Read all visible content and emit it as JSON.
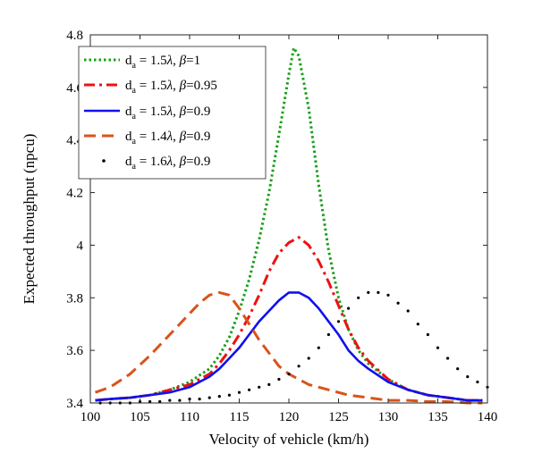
{
  "chart_data": {
    "type": "line",
    "title": "",
    "xlabel": "Velocity of vehicle (km/h)",
    "ylabel": "Expected throughput (npcu)",
    "xlim": [
      100,
      140
    ],
    "ylim": [
      3.4,
      4.8
    ],
    "xticks": [
      100,
      105,
      110,
      115,
      120,
      125,
      130,
      135,
      140
    ],
    "yticks": [
      3.4,
      3.6,
      3.8,
      4.0,
      4.2,
      4.4,
      4.6,
      4.8
    ],
    "ytick_labels": [
      "3.4",
      "3.6",
      "3.8",
      "4",
      "4.2",
      "4.4",
      "4.6",
      "4.8"
    ],
    "grid": false,
    "legend_position": "top-left",
    "series": [
      {
        "name": "d_a = 1.5λ, β=1",
        "legend": {
          "pre": "d",
          "sub": "a",
          "mid": " = 1.5",
          "lambda": "λ",
          "sep": ", ",
          "beta": "β",
          "post": "=1"
        },
        "color": "#1a9e1a",
        "style": "dotted",
        "x": [
          100.5,
          102,
          104,
          106,
          108,
          110,
          112,
          113,
          114,
          115,
          116,
          117,
          118,
          119,
          120,
          120.5,
          121,
          122,
          123,
          124,
          125,
          126,
          127,
          128,
          130,
          132,
          134,
          136,
          138,
          139.5
        ],
        "y": [
          3.41,
          3.415,
          3.42,
          3.43,
          3.45,
          3.48,
          3.53,
          3.58,
          3.65,
          3.75,
          3.87,
          4.02,
          4.2,
          4.42,
          4.65,
          4.75,
          4.72,
          4.52,
          4.23,
          3.98,
          3.8,
          3.68,
          3.6,
          3.55,
          3.49,
          3.45,
          3.43,
          3.42,
          3.41,
          3.41
        ]
      },
      {
        "name": "d_a = 1.5λ, β=0.95",
        "legend": {
          "pre": "d",
          "sub": "a",
          "mid": " = 1.5",
          "lambda": "λ",
          "sep": ", ",
          "beta": "β",
          "post": "=0.95"
        },
        "color": "#ee1111",
        "style": "dashdot",
        "x": [
          100.5,
          102,
          104,
          106,
          108,
          110,
          112,
          113,
          114,
          115,
          116,
          117,
          118,
          119,
          120,
          121,
          122,
          123,
          124,
          125,
          126,
          127,
          128,
          130,
          132,
          134,
          136,
          138,
          139.5
        ],
        "y": [
          3.41,
          3.415,
          3.42,
          3.43,
          3.45,
          3.47,
          3.51,
          3.55,
          3.6,
          3.66,
          3.73,
          3.81,
          3.9,
          3.97,
          4.01,
          4.03,
          4.0,
          3.94,
          3.86,
          3.77,
          3.68,
          3.61,
          3.56,
          3.49,
          3.45,
          3.43,
          3.42,
          3.41,
          3.41
        ]
      },
      {
        "name": "d_a = 1.5λ, β=0.9",
        "legend": {
          "pre": "d",
          "sub": "a",
          "mid": " = 1.5",
          "lambda": "λ",
          "sep": ", ",
          "beta": "β",
          "post": "=0.9"
        },
        "color": "#1111ee",
        "style": "solid",
        "x": [
          100.5,
          102,
          104,
          106,
          108,
          110,
          112,
          113,
          114,
          115,
          116,
          117,
          118,
          119,
          120,
          121,
          122,
          123,
          124,
          125,
          126,
          127,
          128,
          130,
          132,
          134,
          136,
          138,
          139.5
        ],
        "y": [
          3.41,
          3.415,
          3.42,
          3.43,
          3.44,
          3.46,
          3.5,
          3.53,
          3.57,
          3.61,
          3.66,
          3.71,
          3.75,
          3.79,
          3.82,
          3.82,
          3.8,
          3.76,
          3.71,
          3.66,
          3.6,
          3.56,
          3.53,
          3.48,
          3.45,
          3.43,
          3.42,
          3.41,
          3.41
        ]
      },
      {
        "name": "d_a = 1.4λ, β=0.9",
        "legend": {
          "pre": "d",
          "sub": "a",
          "mid": " = 1.4",
          "lambda": "λ",
          "sep": ", ",
          "beta": "β",
          "post": "=0.9"
        },
        "color": "#d95319",
        "style": "dashed",
        "x": [
          100.5,
          102,
          104,
          106,
          108,
          110,
          111,
          112,
          113,
          114,
          115,
          116,
          117,
          118,
          119,
          120,
          121,
          122,
          124,
          126,
          128,
          130,
          132,
          134,
          136,
          138,
          139.5
        ],
        "y": [
          3.44,
          3.46,
          3.51,
          3.58,
          3.66,
          3.74,
          3.78,
          3.81,
          3.82,
          3.81,
          3.76,
          3.7,
          3.64,
          3.59,
          3.54,
          3.51,
          3.49,
          3.47,
          3.45,
          3.43,
          3.42,
          3.41,
          3.41,
          3.405,
          3.405,
          3.4,
          3.4
        ]
      },
      {
        "name": "d_a = 1.6λ, β=0.9",
        "legend": {
          "pre": "d",
          "sub": "a",
          "mid": " = 1.6",
          "lambda": "λ",
          "sep": ", ",
          "beta": "β",
          "post": "=0.9"
        },
        "color": "#000000",
        "style": "dots",
        "x": [
          101,
          102,
          103,
          104,
          105,
          106,
          107,
          108,
          109,
          110,
          111,
          112,
          113,
          114,
          115,
          116,
          117,
          118,
          119,
          120,
          121,
          122,
          123,
          124,
          125,
          126,
          127,
          128,
          129,
          130,
          131,
          132,
          133,
          134,
          135,
          136,
          137,
          138,
          139,
          140
        ],
        "y": [
          3.4,
          3.4,
          3.4,
          3.4,
          3.405,
          3.405,
          3.405,
          3.41,
          3.41,
          3.415,
          3.415,
          3.42,
          3.425,
          3.43,
          3.44,
          3.45,
          3.46,
          3.47,
          3.49,
          3.51,
          3.54,
          3.57,
          3.61,
          3.66,
          3.71,
          3.76,
          3.8,
          3.82,
          3.82,
          3.81,
          3.78,
          3.75,
          3.7,
          3.66,
          3.61,
          3.57,
          3.53,
          3.5,
          3.48,
          3.46
        ]
      }
    ]
  }
}
